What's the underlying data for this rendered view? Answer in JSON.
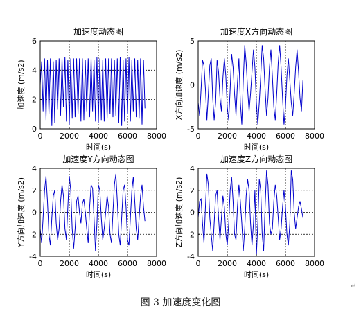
{
  "figure_caption": "图 3  加速度变化图",
  "return_mark": "↵",
  "colors": {
    "line": "#0000cc",
    "grid": "#000000",
    "axes": "#000000",
    "text": "#000000"
  },
  "chart_data": [
    {
      "type": "line",
      "title": "加速度动态图",
      "xlabel": "时间(s)",
      "ylabel": "加速度 (m/s2)",
      "xlim": [
        0,
        8000
      ],
      "ylim": [
        0,
        6
      ],
      "xticks": [
        0,
        2000,
        4000,
        6000,
        8000
      ],
      "yticks": [
        0,
        2,
        4,
        6
      ],
      "grid": "dashed",
      "series": [
        {
          "x": [
            0,
            100,
            200,
            300,
            400,
            500,
            600,
            700,
            800,
            900,
            1000,
            1100,
            1200,
            1300,
            1400,
            1500,
            1600,
            1700,
            1800,
            1900,
            2000,
            2100,
            2200,
            2300,
            2400,
            2500,
            2600,
            2700,
            2800,
            2900,
            3000,
            3100,
            3200,
            3300,
            3400,
            3500,
            3600,
            3700,
            3800,
            3900,
            4000,
            4100,
            4200,
            4300,
            4400,
            4500,
            4600,
            4700,
            4800,
            4900,
            5000,
            5100,
            5200,
            5300,
            5400,
            5500,
            5600,
            5700,
            5800,
            5900,
            6000,
            6100,
            6200,
            6300,
            6400,
            6500,
            6600,
            6700,
            6800,
            6900,
            7000,
            7100,
            7200
          ],
          "values": [
            3.0,
            4.6,
            1.2,
            4.8,
            0.6,
            4.7,
            1.0,
            4.8,
            0.2,
            4.6,
            0.4,
            4.7,
            1.3,
            4.8,
            0.9,
            4.8,
            1.5,
            4.9,
            0.5,
            4.7,
            0.3,
            4.8,
            0.7,
            4.8,
            0.8,
            4.8,
            1.0,
            4.8,
            0.5,
            4.8,
            0.6,
            4.7,
            1.2,
            4.8,
            0.8,
            4.8,
            1.2,
            4.7,
            0.5,
            4.9,
            0.4,
            4.8,
            0.6,
            4.7,
            0.5,
            4.8,
            0.7,
            4.8,
            1.0,
            4.8,
            0.8,
            4.7,
            0.9,
            4.8,
            0.4,
            4.9,
            0.2,
            4.7,
            0.5,
            4.8,
            1.0,
            4.9,
            0.5,
            4.7,
            1.2,
            4.8,
            0.8,
            4.7,
            0.7,
            4.8,
            0.3,
            4.7,
            1.4
          ]
        }
      ]
    },
    {
      "type": "line",
      "title": "加速度X方向动态图",
      "xlabel": "时间(s)",
      "ylabel": "X方向加速度 (m/s2)",
      "xlim": [
        0,
        8000
      ],
      "ylim": [
        -5,
        5
      ],
      "xticks": [
        0,
        2000,
        4000,
        6000,
        8000
      ],
      "yticks": [
        -5,
        0,
        5
      ],
      "grid": "dashed",
      "series": [
        {
          "x": [
            0,
            100,
            200,
            300,
            400,
            500,
            600,
            700,
            800,
            900,
            1000,
            1100,
            1200,
            1300,
            1400,
            1500,
            1600,
            1700,
            1800,
            1900,
            2000,
            2100,
            2200,
            2300,
            2400,
            2500,
            2600,
            2700,
            2800,
            2900,
            3000,
            3100,
            3200,
            3300,
            3400,
            3500,
            3600,
            3700,
            3800,
            3900,
            4000,
            4100,
            4200,
            4300,
            4400,
            4500,
            4600,
            4700,
            4800,
            4900,
            5000,
            5100,
            5200,
            5300,
            5400,
            5500,
            5600,
            5700,
            5800,
            5900,
            6000,
            6100,
            6200,
            6300,
            6400,
            6500,
            6600,
            6700,
            6800,
            6900,
            7000,
            7100,
            7200
          ],
          "values": [
            -2.0,
            -3.5,
            -0.5,
            2.8,
            2.2,
            -0.5,
            -4.0,
            -1.0,
            2.2,
            3.0,
            -1.5,
            -4.0,
            -2.0,
            2.8,
            1.5,
            -1.5,
            -3.0,
            0.8,
            3.0,
            1.0,
            -2.5,
            -4.0,
            -0.5,
            3.5,
            2.0,
            -1.0,
            -3.5,
            0.2,
            3.0,
            -2.0,
            -4.5,
            0.5,
            4.5,
            2.5,
            -0.5,
            -3.0,
            -1.0,
            1.5,
            4.0,
            2.0,
            -2.0,
            -4.5,
            -2.0,
            1.0,
            4.5,
            3.0,
            -0.5,
            -3.5,
            -1.5,
            2.0,
            4.0,
            1.0,
            -2.5,
            -4.0,
            -1.0,
            2.5,
            4.5,
            2.0,
            -1.5,
            -4.5,
            -2.5,
            1.0,
            3.0,
            0.5,
            -2.0,
            -3.5,
            -1.0,
            2.0,
            4.0,
            1.5,
            -1.5,
            -3.0,
            0.5
          ]
        }
      ]
    },
    {
      "type": "line",
      "title": "加速度Y方向动态图",
      "xlabel": "时间(s)",
      "ylabel": "Y方向加速度 (m/s2)",
      "xlim": [
        0,
        8000
      ],
      "ylim": [
        -4,
        4
      ],
      "xticks": [
        0,
        2000,
        4000,
        6000,
        8000
      ],
      "yticks": [
        -4,
        -2,
        0,
        2,
        4
      ],
      "grid": "dashed",
      "series": [
        {
          "x": [
            0,
            100,
            200,
            300,
            400,
            500,
            600,
            700,
            800,
            900,
            1000,
            1100,
            1200,
            1300,
            1400,
            1500,
            1600,
            1700,
            1800,
            1900,
            2000,
            2100,
            2200,
            2300,
            2400,
            2500,
            2600,
            2700,
            2800,
            2900,
            3000,
            3100,
            3200,
            3300,
            3400,
            3500,
            3600,
            3700,
            3800,
            3900,
            4000,
            4100,
            4200,
            4300,
            4400,
            4500,
            4600,
            4700,
            4800,
            4900,
            5000,
            5100,
            5200,
            5300,
            5400,
            5500,
            5600,
            5700,
            5800,
            5900,
            6000,
            6100,
            6200,
            6300,
            6400,
            6500,
            6600,
            6700,
            6800,
            6900,
            7000,
            7100,
            7200
          ],
          "values": [
            -1.5,
            -2.8,
            -0.5,
            2.0,
            3.3,
            1.0,
            -2.0,
            -3.0,
            -0.5,
            1.5,
            2.0,
            -1.0,
            -2.5,
            -1.5,
            1.0,
            2.5,
            1.5,
            -1.5,
            -2.5,
            0.5,
            3.3,
            2.0,
            -1.5,
            -3.3,
            -1.5,
            1.0,
            1.5,
            0.0,
            -1.0,
            0.8,
            1.2,
            0.0,
            -1.5,
            -2.8,
            0.5,
            2.5,
            2.2,
            -0.5,
            -3.5,
            -1.0,
            2.5,
            2.0,
            -0.5,
            -2.5,
            -1.5,
            0.0,
            1.5,
            0.5,
            -2.0,
            -2.8,
            0.0,
            2.5,
            3.5,
            1.0,
            -2.0,
            -3.0,
            -0.5,
            2.0,
            2.5,
            0.5,
            -2.5,
            -3.0,
            -0.5,
            2.0,
            3.2,
            1.0,
            -1.5,
            -2.5,
            -0.5,
            1.5,
            2.5,
            0.5,
            -0.8
          ]
        }
      ]
    },
    {
      "type": "line",
      "title": "加速度Z方向动态图",
      "xlabel": "时间(s)",
      "ylabel": "Z方向加速度 (m/s2)",
      "xlim": [
        0,
        8000
      ],
      "ylim": [
        -4,
        4
      ],
      "xticks": [
        0,
        2000,
        4000,
        6000,
        8000
      ],
      "yticks": [
        -4,
        -2,
        0,
        2,
        4
      ],
      "grid": "dashed",
      "series": [
        {
          "x": [
            0,
            100,
            200,
            300,
            400,
            500,
            600,
            700,
            800,
            900,
            1000,
            1100,
            1200,
            1300,
            1400,
            1500,
            1600,
            1700,
            1800,
            1900,
            2000,
            2100,
            2200,
            2300,
            2400,
            2500,
            2600,
            2700,
            2800,
            2900,
            3000,
            3100,
            3200,
            3300,
            3400,
            3500,
            3600,
            3700,
            3800,
            3900,
            4000,
            4100,
            4200,
            4300,
            4400,
            4500,
            4600,
            4700,
            4800,
            4900,
            5000,
            5100,
            5200,
            5300,
            5400,
            5500,
            5600,
            5700,
            5800,
            5900,
            6000,
            6100,
            6200,
            6300,
            6400,
            6500,
            6600,
            6700,
            6800,
            6900,
            7000,
            7100,
            7200
          ],
          "values": [
            -0.5,
            1.0,
            1.2,
            -1.0,
            -2.8,
            0.5,
            3.5,
            2.5,
            -0.5,
            -2.0,
            -3.5,
            -1.0,
            1.5,
            2.0,
            -0.5,
            -2.5,
            -0.5,
            1.5,
            0.5,
            -2.0,
            -3.0,
            -1.0,
            2.0,
            3.2,
            1.0,
            -2.0,
            -2.5,
            0.5,
            2.5,
            1.0,
            -1.0,
            -3.5,
            -1.5,
            1.5,
            3.0,
            2.0,
            -1.0,
            -3.0,
            -1.0,
            2.0,
            -4.0,
            -1.0,
            3.0,
            2.0,
            -2.0,
            -3.5,
            0.5,
            3.8,
            2.5,
            -1.0,
            -2.0,
            -1.5,
            1.0,
            2.5,
            1.5,
            -0.5,
            -2.5,
            -1.5,
            0.5,
            2.0,
            0.5,
            -2.0,
            -3.0,
            -1.0,
            3.8,
            3.0,
            0.0,
            -1.5,
            -0.5,
            0.5,
            1.0,
            0.3,
            -0.5
          ]
        }
      ]
    }
  ]
}
